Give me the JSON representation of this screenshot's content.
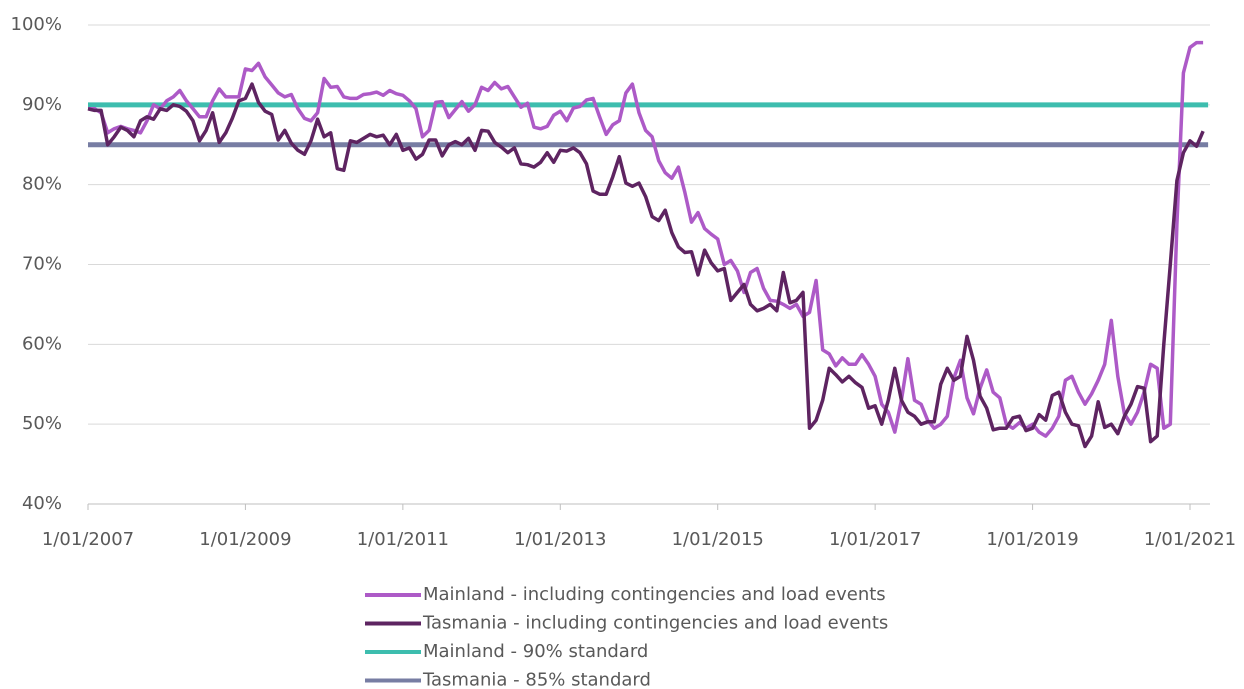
{
  "chart_data": {
    "type": "line",
    "x": [
      "1/01/2007",
      "1/02/2007",
      "1/03/2007",
      "1/04/2007",
      "1/05/2007",
      "1/06/2007",
      "1/07/2007",
      "1/08/2007",
      "1/09/2007",
      "1/10/2007",
      "1/11/2007",
      "1/12/2007",
      "1/01/2008",
      "1/02/2008",
      "1/03/2008",
      "1/04/2008",
      "1/05/2008",
      "1/06/2008",
      "1/07/2008",
      "1/08/2008",
      "1/09/2008",
      "1/10/2008",
      "1/11/2008",
      "1/12/2008",
      "1/01/2009",
      "1/02/2009",
      "1/03/2009",
      "1/04/2009",
      "1/05/2009",
      "1/06/2009",
      "1/07/2009",
      "1/08/2009",
      "1/09/2009",
      "1/10/2009",
      "1/11/2009",
      "1/12/2009",
      "1/01/2010",
      "1/02/2010",
      "1/03/2010",
      "1/04/2010",
      "1/05/2010",
      "1/06/2010",
      "1/07/2010",
      "1/08/2010",
      "1/09/2010",
      "1/10/2010",
      "1/11/2010",
      "1/12/2010",
      "1/01/2011",
      "1/02/2011",
      "1/03/2011",
      "1/04/2011",
      "1/05/2011",
      "1/06/2011",
      "1/07/2011",
      "1/08/2011",
      "1/09/2011",
      "1/10/2011",
      "1/11/2011",
      "1/12/2011",
      "1/01/2012",
      "1/02/2012",
      "1/03/2012",
      "1/04/2012",
      "1/05/2012",
      "1/06/2012",
      "1/07/2012",
      "1/08/2012",
      "1/09/2012",
      "1/10/2012",
      "1/11/2012",
      "1/12/2012",
      "1/01/2013",
      "1/02/2013",
      "1/03/2013",
      "1/04/2013",
      "1/05/2013",
      "1/06/2013",
      "1/07/2013",
      "1/08/2013",
      "1/09/2013",
      "1/10/2013",
      "1/11/2013",
      "1/12/2013",
      "1/01/2014",
      "1/02/2014",
      "1/03/2014",
      "1/04/2014",
      "1/05/2014",
      "1/06/2014",
      "1/07/2014",
      "1/08/2014",
      "1/09/2014",
      "1/10/2014",
      "1/11/2014",
      "1/12/2014",
      "1/01/2015",
      "1/02/2015",
      "1/03/2015",
      "1/04/2015",
      "1/05/2015",
      "1/06/2015",
      "1/07/2015",
      "1/08/2015",
      "1/09/2015",
      "1/10/2015",
      "1/11/2015",
      "1/12/2015",
      "1/01/2016",
      "1/02/2016",
      "1/03/2016",
      "1/04/2016",
      "1/05/2016",
      "1/06/2016",
      "1/07/2016",
      "1/08/2016",
      "1/09/2016",
      "1/10/2016",
      "1/11/2016",
      "1/12/2016",
      "1/01/2017",
      "1/02/2017",
      "1/03/2017",
      "1/04/2017",
      "1/05/2017",
      "1/06/2017",
      "1/07/2017",
      "1/08/2017",
      "1/09/2017",
      "1/10/2017",
      "1/11/2017",
      "1/12/2017",
      "1/01/2018",
      "1/02/2018",
      "1/03/2018",
      "1/04/2018",
      "1/05/2018",
      "1/06/2018",
      "1/07/2018",
      "1/08/2018",
      "1/09/2018",
      "1/10/2018",
      "1/11/2018",
      "1/12/2018",
      "1/01/2019",
      "1/02/2019",
      "1/03/2019",
      "1/04/2019",
      "1/05/2019",
      "1/06/2019",
      "1/07/2019",
      "1/08/2019",
      "1/09/2019",
      "1/10/2019",
      "1/11/2019",
      "1/12/2019",
      "1/01/2020",
      "1/02/2020",
      "1/03/2020",
      "1/04/2020",
      "1/05/2020",
      "1/06/2020",
      "1/07/2020",
      "1/08/2020",
      "1/09/2020",
      "1/10/2020",
      "1/11/2020",
      "1/12/2020",
      "1/01/2021",
      "1/02/2021",
      "1/03/2021"
    ],
    "series": [
      {
        "name": "Mainland - including contingencies and load events",
        "color": "#ad5ac7",
        "values": [
          89.5,
          89.5,
          89,
          86.5,
          87,
          87.3,
          87,
          86.8,
          86.5,
          88,
          90,
          89.5,
          90.5,
          91,
          91.8,
          90.5,
          89.5,
          88.5,
          88.5,
          90.5,
          92,
          91,
          91,
          91,
          94.5,
          94.3,
          95.2,
          93.5,
          92.5,
          91.5,
          91,
          91.3,
          89.5,
          88.3,
          88,
          89,
          93.3,
          92.2,
          92.3,
          91,
          90.8,
          90.8,
          91.3,
          91.4,
          91.6,
          91.2,
          91.8,
          91.4,
          91.2,
          90.5,
          89.5,
          86,
          86.8,
          90.3,
          90.4,
          88.4,
          89.4,
          90.4,
          89.2,
          90,
          92.2,
          91.8,
          92.8,
          92,
          92.3,
          91,
          89.7,
          90.2,
          87.2,
          87,
          87.3,
          88.7,
          89.2,
          88,
          89.6,
          89.8,
          90.6,
          90.8,
          88.5,
          86.3,
          87.5,
          88,
          91.5,
          92.6,
          89,
          86.8,
          86,
          83,
          81.5,
          80.8,
          82.2,
          79,
          75.3,
          76.5,
          74.5,
          73.8,
          73.2,
          70,
          70.5,
          69.2,
          66.5,
          69,
          69.5,
          67,
          65.5,
          65.4,
          65,
          64.5,
          65,
          63.5,
          64,
          68,
          59.3,
          58.8,
          57.3,
          58.3,
          57.5,
          57.5,
          58.7,
          57.5,
          56,
          52.5,
          51.5,
          49,
          53,
          58.2,
          53,
          52.5,
          50.5,
          49.5,
          50,
          51,
          55.8,
          58,
          53.3,
          51.3,
          54.5,
          56.8,
          54,
          53.3,
          50,
          49.5,
          50.2,
          49.5,
          50,
          49,
          48.5,
          49.5,
          51,
          55.5,
          56,
          54,
          52.5,
          53.8,
          55.5,
          57.5,
          63,
          56,
          51.3,
          50,
          51.5,
          54,
          57.5,
          57,
          49.5,
          50,
          75,
          94,
          97.2,
          97.8,
          97.8
        ]
      },
      {
        "name": "Tasmania - including contingencies and load events",
        "color": "#5e2461",
        "values": [
          89.5,
          89.3,
          89.3,
          85,
          86,
          87.2,
          86.8,
          86,
          88,
          88.5,
          88.2,
          89.5,
          89.3,
          90,
          89.8,
          89.2,
          88,
          85.5,
          86.8,
          89,
          85.3,
          86.5,
          88.3,
          90.5,
          90.8,
          92.6,
          90.3,
          89.2,
          88.8,
          85.6,
          86.8,
          85.2,
          84.3,
          83.8,
          85.5,
          88.2,
          86,
          86.5,
          82,
          81.8,
          85.5,
          85.3,
          85.8,
          86.3,
          86,
          86.2,
          85,
          86.3,
          84.3,
          84.6,
          83.2,
          83.8,
          85.6,
          85.6,
          83.6,
          85,
          85.4,
          85,
          85.8,
          84.3,
          86.8,
          86.7,
          85.3,
          84.7,
          84,
          84.6,
          82.6,
          82.5,
          82.2,
          82.8,
          84,
          82.8,
          84.3,
          84.2,
          84.6,
          84,
          82.6,
          79.2,
          78.8,
          78.8,
          81,
          83.5,
          80.2,
          79.8,
          80.2,
          78.5,
          76,
          75.5,
          76.8,
          74,
          72.2,
          71.5,
          71.6,
          68.7,
          71.8,
          70.2,
          69.2,
          69.5,
          65.5,
          66.5,
          67.5,
          65,
          64.2,
          64.5,
          65,
          64.2,
          69,
          65.2,
          65.5,
          66.5,
          49.5,
          50.5,
          53,
          57,
          56.2,
          55.3,
          56,
          55.2,
          54.6,
          52,
          52.3,
          50,
          53,
          57,
          53,
          51.5,
          51,
          50,
          50.3,
          50.3,
          55,
          57,
          55.5,
          56,
          61,
          58,
          53.5,
          52,
          49.3,
          49.5,
          49.5,
          50.8,
          51,
          49.2,
          49.5,
          51.2,
          50.5,
          53.6,
          54,
          51.5,
          50,
          49.8,
          47.2,
          48.5,
          52.8,
          49.6,
          50,
          48.8,
          51,
          52.5,
          54.7,
          54.5,
          47.8,
          48.5,
          60,
          70,
          80.5,
          84,
          85.5,
          84.8,
          86.7
        ]
      }
    ],
    "reference_lines": [
      {
        "name": "Mainland - 90% standard",
        "color": "#3dbdae",
        "value": 90
      },
      {
        "name": "Tasmania - 85% standard",
        "color": "#777da3",
        "value": 85
      }
    ],
    "xticks": [
      "1/01/2007",
      "1/01/2009",
      "1/01/2011",
      "1/01/2013",
      "1/01/2015",
      "1/01/2017",
      "1/01/2019",
      "1/01/2021"
    ],
    "ylim": [
      40,
      100
    ],
    "yticks": [
      {
        "value": 40,
        "label": "40%"
      },
      {
        "value": 50,
        "label": "50%"
      },
      {
        "value": 60,
        "label": "60%"
      },
      {
        "value": 70,
        "label": "70%"
      },
      {
        "value": 80,
        "label": "80%"
      },
      {
        "value": 90,
        "label": "90%"
      },
      {
        "value": 100,
        "label": "100%"
      }
    ],
    "grid": true,
    "legend": "bottom"
  }
}
